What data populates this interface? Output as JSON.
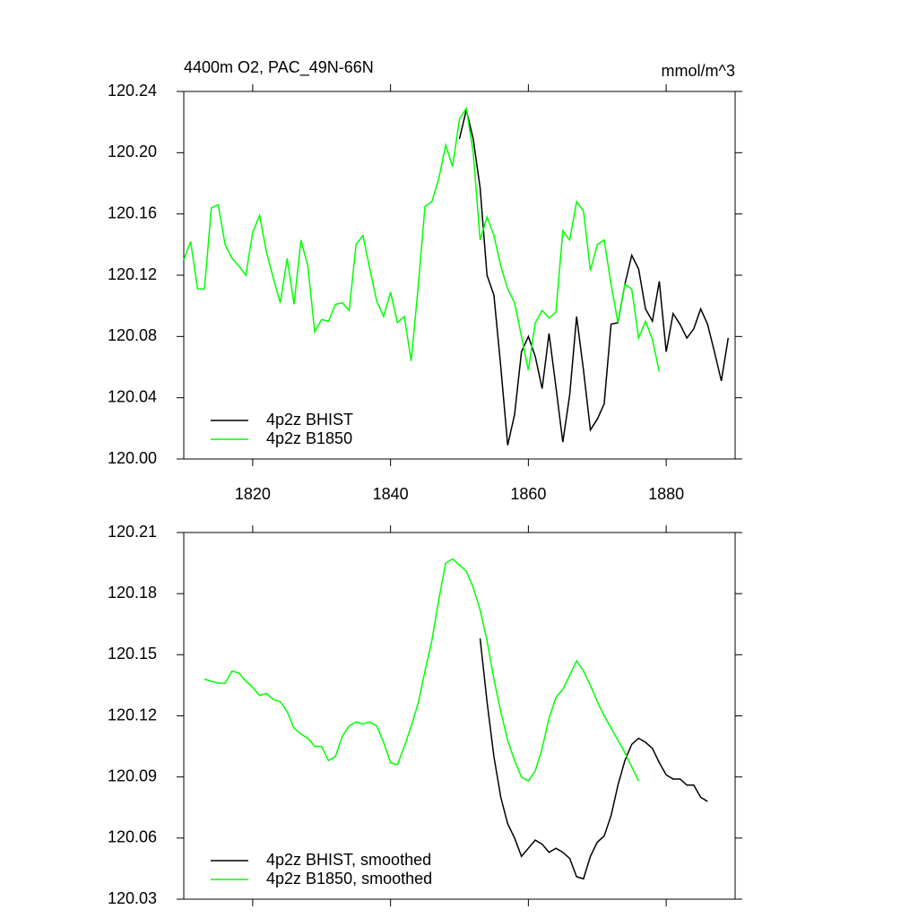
{
  "chart_data": [
    {
      "type": "line",
      "title": "4400m O2, PAC_49N-66N",
      "units": "mmol/m^3",
      "xlim": [
        1810,
        1890
      ],
      "xticks": [
        1820,
        1840,
        1860,
        1880
      ],
      "xtick_labels": true,
      "ylim": [
        120.0,
        120.24
      ],
      "yticks": [
        {
          "value": 120.0,
          "label": "120.00"
        },
        {
          "value": 120.04,
          "label": "120.04"
        },
        {
          "value": 120.08,
          "label": "120.08"
        },
        {
          "value": 120.12,
          "label": "120.12"
        },
        {
          "value": 120.16,
          "label": "120.16"
        },
        {
          "value": 120.2,
          "label": "120.20"
        },
        {
          "value": 120.24,
          "label": "120.24"
        }
      ],
      "legend": "lower-left",
      "series": [
        {
          "name": "4p2z BHIST",
          "color": "#000000",
          "x": [
            1850,
            1851,
            1852,
            1853,
            1854,
            1855,
            1856,
            1857,
            1858,
            1859,
            1860,
            1861,
            1862,
            1863,
            1864,
            1865,
            1866,
            1867,
            1868,
            1869,
            1870,
            1871,
            1872,
            1873,
            1874,
            1875,
            1876,
            1877,
            1878,
            1879,
            1880,
            1881,
            1882,
            1883,
            1884,
            1885,
            1886,
            1887,
            1888,
            1889
          ],
          "values": [
            120.209,
            120.228,
            120.209,
            120.177,
            120.12,
            120.107,
            120.06,
            120.009,
            120.029,
            120.07,
            120.08,
            120.067,
            120.046,
            120.082,
            120.047,
            120.011,
            120.042,
            120.093,
            120.058,
            120.019,
            120.026,
            120.036,
            120.088,
            120.089,
            120.114,
            120.133,
            120.124,
            120.098,
            120.09,
            120.116,
            120.07,
            120.095,
            120.088,
            120.079,
            120.085,
            120.098,
            120.088,
            120.07,
            120.051,
            120.079
          ]
        },
        {
          "name": "4p2z B1850",
          "color": "#00ff00",
          "x": [
            1810,
            1811,
            1812,
            1813,
            1814,
            1815,
            1816,
            1817,
            1818,
            1819,
            1820,
            1821,
            1822,
            1823,
            1824,
            1825,
            1826,
            1827,
            1828,
            1829,
            1830,
            1831,
            1832,
            1833,
            1834,
            1835,
            1836,
            1837,
            1838,
            1839,
            1840,
            1841,
            1842,
            1843,
            1844,
            1845,
            1846,
            1847,
            1848,
            1849,
            1850,
            1851,
            1852,
            1853,
            1854,
            1855,
            1856,
            1857,
            1858,
            1859,
            1860,
            1861,
            1862,
            1863,
            1864,
            1865,
            1866,
            1867,
            1868,
            1869,
            1870,
            1871,
            1872,
            1873,
            1874,
            1875,
            1876,
            1877,
            1878,
            1879
          ],
          "values": [
            120.13,
            120.142,
            120.111,
            120.111,
            120.164,
            120.166,
            120.14,
            120.131,
            120.126,
            120.12,
            120.148,
            120.159,
            120.135,
            120.118,
            120.102,
            120.131,
            120.101,
            120.143,
            120.126,
            120.083,
            120.091,
            120.09,
            120.101,
            120.102,
            120.097,
            120.14,
            120.146,
            120.124,
            120.103,
            120.093,
            120.109,
            120.089,
            120.093,
            120.064,
            120.112,
            120.165,
            120.168,
            120.183,
            120.205,
            120.191,
            120.222,
            120.229,
            120.2,
            120.143,
            120.158,
            120.146,
            120.126,
            120.111,
            120.102,
            120.08,
            120.058,
            120.089,
            120.097,
            120.092,
            120.096,
            120.149,
            120.143,
            120.168,
            120.162,
            120.123,
            120.14,
            120.143,
            120.114,
            120.089,
            120.114,
            120.111,
            120.079,
            120.09,
            120.078,
            120.057
          ]
        }
      ]
    },
    {
      "type": "line",
      "xlim": [
        1810,
        1890
      ],
      "xticks": [
        1820,
        1840,
        1860,
        1880
      ],
      "xtick_labels": false,
      "ylim": [
        120.03,
        120.21
      ],
      "yticks": [
        {
          "value": 120.03,
          "label": "120.03"
        },
        {
          "value": 120.06,
          "label": "120.06"
        },
        {
          "value": 120.09,
          "label": "120.09"
        },
        {
          "value": 120.12,
          "label": "120.12"
        },
        {
          "value": 120.15,
          "label": "120.15"
        },
        {
          "value": 120.18,
          "label": "120.18"
        },
        {
          "value": 120.21,
          "label": "120.21"
        }
      ],
      "legend": "lower-left",
      "series": [
        {
          "name": "4p2z BHIST, smoothed",
          "color": "#000000",
          "x": [
            1853,
            1854,
            1855,
            1856,
            1857,
            1858,
            1859,
            1860,
            1861,
            1862,
            1863,
            1864,
            1865,
            1866,
            1867,
            1868,
            1869,
            1870,
            1871,
            1872,
            1873,
            1874,
            1875,
            1876,
            1877,
            1878,
            1879,
            1880,
            1881,
            1882,
            1883,
            1884,
            1885,
            1886
          ],
          "values": [
            120.158,
            120.127,
            120.1,
            120.08,
            120.067,
            120.06,
            120.051,
            120.055,
            120.059,
            120.057,
            120.053,
            120.055,
            120.053,
            120.05,
            120.041,
            120.04,
            120.051,
            120.058,
            120.061,
            120.071,
            120.086,
            120.098,
            120.106,
            120.109,
            120.107,
            120.104,
            120.097,
            120.091,
            120.089,
            120.089,
            120.086,
            120.086,
            120.08,
            120.078
          ]
        },
        {
          "name": "4p2z B1850, smoothed",
          "color": "#00ff00",
          "x": [
            1813,
            1814,
            1815,
            1816,
            1817,
            1818,
            1819,
            1820,
            1821,
            1822,
            1823,
            1824,
            1825,
            1826,
            1827,
            1828,
            1829,
            1830,
            1831,
            1832,
            1833,
            1834,
            1835,
            1836,
            1837,
            1838,
            1839,
            1840,
            1841,
            1842,
            1843,
            1844,
            1845,
            1846,
            1847,
            1848,
            1849,
            1850,
            1851,
            1852,
            1853,
            1854,
            1855,
            1856,
            1857,
            1858,
            1859,
            1860,
            1861,
            1862,
            1863,
            1864,
            1865,
            1866,
            1867,
            1868,
            1869,
            1870,
            1871,
            1872,
            1873,
            1874,
            1875,
            1876
          ],
          "values": [
            120.138,
            120.137,
            120.136,
            120.136,
            120.142,
            120.141,
            120.137,
            120.134,
            120.13,
            120.131,
            120.128,
            120.127,
            120.122,
            120.114,
            120.111,
            120.109,
            120.105,
            120.105,
            120.098,
            120.1,
            120.11,
            120.115,
            120.117,
            120.116,
            120.117,
            120.115,
            120.107,
            120.097,
            120.096,
            120.105,
            120.115,
            120.126,
            120.142,
            120.157,
            120.177,
            120.195,
            120.197,
            120.194,
            120.191,
            120.183,
            120.172,
            120.157,
            120.138,
            120.122,
            120.108,
            120.098,
            120.09,
            120.088,
            120.093,
            120.104,
            120.119,
            120.129,
            120.133,
            120.14,
            120.147,
            120.142,
            120.135,
            120.127,
            120.12,
            120.114,
            120.108,
            120.102,
            120.095,
            120.088
          ]
        }
      ]
    }
  ]
}
